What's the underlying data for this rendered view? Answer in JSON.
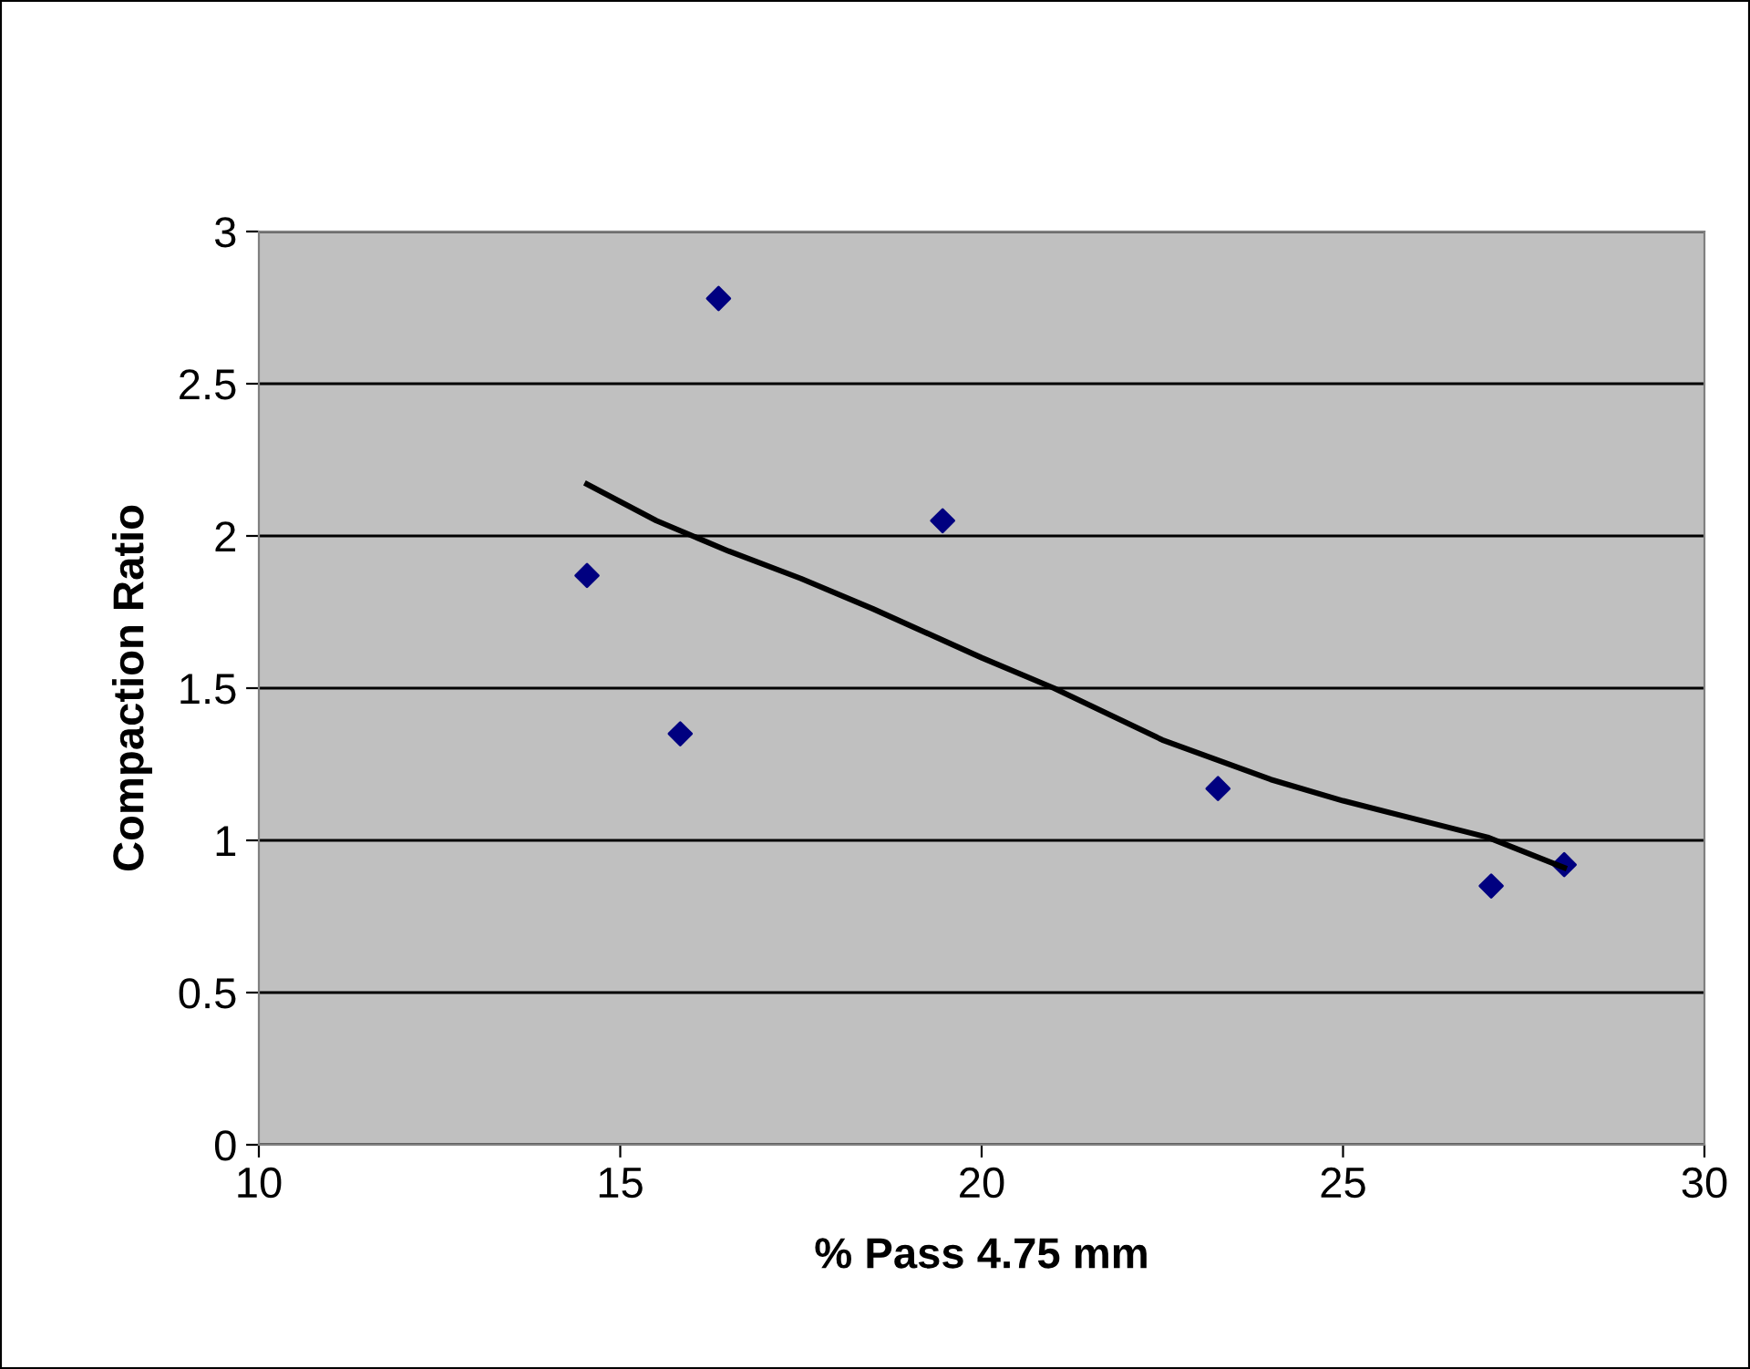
{
  "chart_data": {
    "type": "scatter",
    "xlabel": "% Pass 4.75 mm",
    "ylabel": "Compaction Ratio",
    "xlim": [
      10,
      30
    ],
    "xticks": [
      10,
      15,
      20,
      25,
      30
    ],
    "ylim": [
      0,
      3
    ],
    "yticks": [
      0,
      0.5,
      1,
      1.5,
      2,
      2.5,
      3
    ],
    "grid": "y",
    "marker": "diamond",
    "series": [
      {
        "color": "#000080",
        "x": [
          14.54,
          15.83,
          16.36,
          19.46,
          23.27,
          27.05,
          28.06
        ],
        "values": [
          1.87,
          1.35,
          2.78,
          2.05,
          1.17,
          0.85,
          0.92
        ]
      },
      {
        "type": "line",
        "color": "#000000",
        "marker": "none",
        "line_style": "solid",
        "x": [
          14.54,
          15.5,
          16.5,
          17.5,
          18.5,
          20,
          21,
          22.5,
          24,
          25,
          26,
          27,
          28.06
        ],
        "values": [
          2.17,
          2.05,
          1.95,
          1.86,
          1.76,
          1.6,
          1.5,
          1.33,
          1.2,
          1.13,
          1.07,
          1.01,
          0.91
        ]
      }
    ]
  }
}
